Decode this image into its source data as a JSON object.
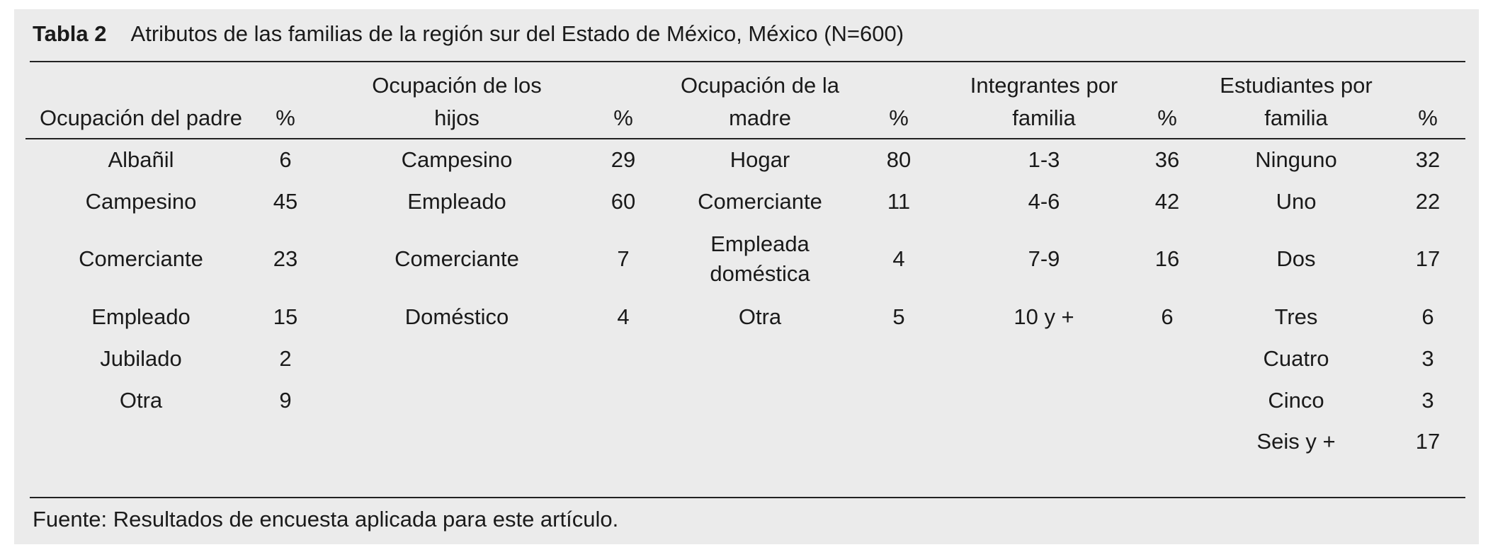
{
  "table": {
    "label": "Tabla 2",
    "title": "Atributos de las familias de la región sur del Estado de México, México (N=600)",
    "columns": [
      {
        "header": "Ocupación del padre",
        "unit": "%",
        "items": [
          {
            "label": "Albañil",
            "value": 6
          },
          {
            "label": "Campesino",
            "value": 45
          },
          {
            "label": "Comerciante",
            "value": 23
          },
          {
            "label": "Empleado",
            "value": 15
          },
          {
            "label": "Jubilado",
            "value": 2
          },
          {
            "label": "Otra",
            "value": 9
          }
        ]
      },
      {
        "header": "Ocupación de los hijos",
        "unit": "%",
        "items": [
          {
            "label": "Campesino",
            "value": 29
          },
          {
            "label": "Empleado",
            "value": 60
          },
          {
            "label": "Comerciante",
            "value": 7
          },
          {
            "label": "Doméstico",
            "value": 4
          }
        ]
      },
      {
        "header": "Ocupación de la madre",
        "unit": "%",
        "items": [
          {
            "label": "Hogar",
            "value": 80
          },
          {
            "label": "Comerciante",
            "value": 11
          },
          {
            "label": "Empleada doméstica",
            "value": 4
          },
          {
            "label": "Otra",
            "value": 5
          }
        ]
      },
      {
        "header": "Integrantes por familia",
        "unit": "%",
        "items": [
          {
            "label": "1-3",
            "value": 36
          },
          {
            "label": "4-6",
            "value": 42
          },
          {
            "label": "7-9",
            "value": 16
          },
          {
            "label": "10 y +",
            "value": 6
          }
        ]
      },
      {
        "header": "Estudiantes por familia",
        "unit": "%",
        "items": [
          {
            "label": "Ninguno",
            "value": 32
          },
          {
            "label": "Uno",
            "value": 22
          },
          {
            "label": "Dos",
            "value": 17
          },
          {
            "label": "Tres",
            "value": 6
          },
          {
            "label": "Cuatro",
            "value": 3
          },
          {
            "label": "Cinco",
            "value": 3
          },
          {
            "label": "Seis y +",
            "value": 17
          }
        ]
      }
    ],
    "footnote": "Fuente: Resultados de encuesta aplicada para este artículo."
  }
}
